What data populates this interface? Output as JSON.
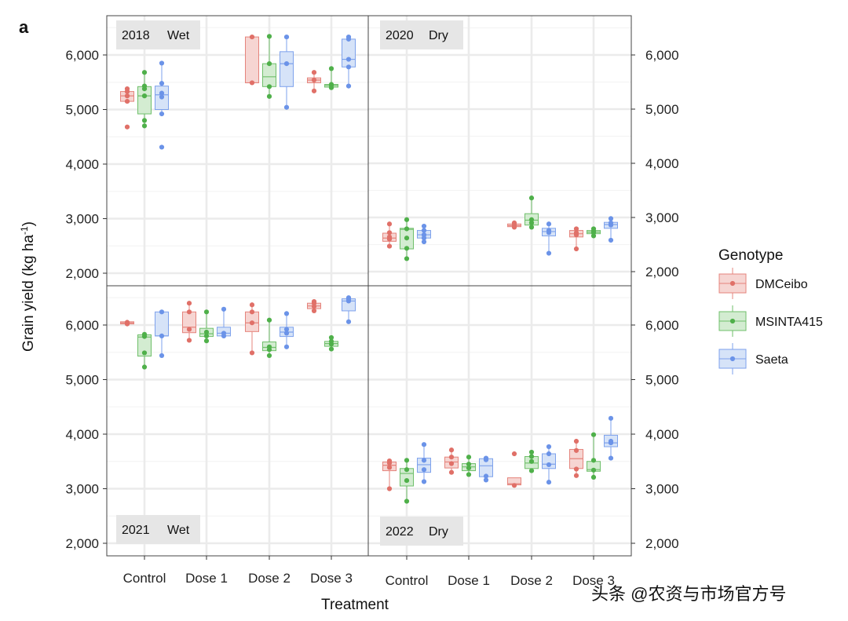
{
  "panel_letter": "a",
  "watermark": "头条 @农资与市场官方号",
  "colors": {
    "DMCeibo": {
      "fill": "#f6d5d2",
      "line": "#e5847c",
      "point": "#e07068"
    },
    "MSINTA415": {
      "fill": "#d3ecd1",
      "line": "#6fbf6a",
      "point": "#4fb04a"
    },
    "Saeta": {
      "fill": "#d6e3f8",
      "line": "#7ea2ec",
      "point": "#6b93e8"
    }
  },
  "chart_data": {
    "type": "box",
    "xlabel": "Treatment",
    "ylabel": "Grain yield (kg ha",
    "ylabel_sup": "-1",
    "ylabel_end": ")",
    "categories": [
      "Control",
      "Dose 1",
      "Dose 2",
      "Dose 3"
    ],
    "yticks": [
      2000,
      3000,
      4000,
      5000,
      6000
    ],
    "ytick_labels": [
      "2,000",
      "3,000",
      "4,000",
      "5,000",
      "6,000"
    ],
    "ylim_top_row": [
      1700,
      6700
    ],
    "ylim_bottom_row": [
      1850,
      6600
    ],
    "legend": {
      "title": "Genotype",
      "entries": [
        "DMCeibo",
        "MSINTA415",
        "Saeta"
      ],
      "position": "right"
    },
    "panels": [
      {
        "year": "2018",
        "condition": "Wet",
        "row": 0,
        "col": 0,
        "groups": [
          {
            "treatment": "Control",
            "genotype": "DMCeibo",
            "q1": 5150,
            "median": 5250,
            "q3": 5330,
            "lo": 5150,
            "hi": 5380,
            "points": [
              4680,
              5150,
              5250,
              5330,
              5380
            ]
          },
          {
            "treatment": "Control",
            "genotype": "MSINTA415",
            "q1": 4920,
            "median": 5250,
            "q3": 5420,
            "lo": 4700,
            "hi": 5680,
            "points": [
              4700,
              4800,
              5250,
              5380,
              5430,
              5680
            ]
          },
          {
            "treatment": "Control",
            "genotype": "Saeta",
            "q1": 5000,
            "median": 5270,
            "q3": 5430,
            "lo": 4920,
            "hi": 5850,
            "points": [
              4310,
              4920,
              5230,
              5300,
              5480,
              5850
            ]
          },
          {
            "treatment": "Dose 2",
            "genotype": "DMCeibo",
            "q1": 5490,
            "median": 5490,
            "q3": 6330,
            "lo": 5490,
            "hi": 6330,
            "points": [
              5490,
              6330
            ]
          },
          {
            "treatment": "Dose 2",
            "genotype": "MSINTA415",
            "q1": 5420,
            "median": 5600,
            "q3": 5840,
            "lo": 5240,
            "hi": 6340,
            "points": [
              5240,
              5420,
              5840,
              6340
            ]
          },
          {
            "treatment": "Dose 2",
            "genotype": "Saeta",
            "q1": 5420,
            "median": 5840,
            "q3": 6060,
            "lo": 5040,
            "hi": 6330,
            "points": [
              5040,
              5840,
              6330
            ]
          },
          {
            "treatment": "Dose 3",
            "genotype": "DMCeibo",
            "q1": 5490,
            "median": 5540,
            "q3": 5580,
            "lo": 5340,
            "hi": 5680,
            "points": [
              5340,
              5540,
              5680
            ]
          },
          {
            "treatment": "Dose 3",
            "genotype": "MSINTA415",
            "q1": 5410,
            "median": 5440,
            "q3": 5460,
            "lo": 5400,
            "hi": 5750,
            "points": [
              5400,
              5440,
              5460,
              5750
            ]
          },
          {
            "treatment": "Dose 3",
            "genotype": "Saeta",
            "q1": 5780,
            "median": 5920,
            "q3": 6290,
            "lo": 5430,
            "hi": 6330,
            "points": [
              5430,
              5780,
              5920,
              6290,
              6330
            ]
          }
        ]
      },
      {
        "year": "2020",
        "condition": "Dry",
        "row": 0,
        "col": 1,
        "groups": [
          {
            "treatment": "Control",
            "genotype": "DMCeibo",
            "q1": 2560,
            "median": 2620,
            "q3": 2710,
            "lo": 2470,
            "hi": 2880,
            "points": [
              2470,
              2600,
              2640,
              2720,
              2880
            ]
          },
          {
            "treatment": "Control",
            "genotype": "MSINTA415",
            "q1": 2420,
            "median": 2780,
            "q3": 2800,
            "lo": 2240,
            "hi": 2960,
            "points": [
              2240,
              2430,
              2620,
              2790,
              2960
            ]
          },
          {
            "treatment": "Control",
            "genotype": "Saeta",
            "q1": 2620,
            "median": 2680,
            "q3": 2760,
            "lo": 2550,
            "hi": 2840,
            "points": [
              2550,
              2620,
              2680,
              2760,
              2840
            ]
          },
          {
            "treatment": "Dose 2",
            "genotype": "DMCeibo",
            "q1": 2830,
            "median": 2850,
            "q3": 2880,
            "lo": 2820,
            "hi": 2900,
            "points": [
              2820,
              2850,
              2880,
              2900
            ]
          },
          {
            "treatment": "Dose 2",
            "genotype": "MSINTA415",
            "q1": 2860,
            "median": 2950,
            "q3": 3070,
            "lo": 2820,
            "hi": 3360,
            "points": [
              2820,
              2900,
              2960,
              3360
            ]
          },
          {
            "treatment": "Dose 2",
            "genotype": "Saeta",
            "q1": 2660,
            "median": 2740,
            "q3": 2800,
            "lo": 2340,
            "hi": 2880,
            "points": [
              2340,
              2720,
              2760,
              2880
            ]
          },
          {
            "treatment": "Dose 3",
            "genotype": "DMCeibo",
            "q1": 2640,
            "median": 2700,
            "q3": 2760,
            "lo": 2420,
            "hi": 2790,
            "points": [
              2420,
              2680,
              2720,
              2790
            ]
          },
          {
            "treatment": "Dose 3",
            "genotype": "MSINTA415",
            "q1": 2700,
            "median": 2730,
            "q3": 2760,
            "lo": 2660,
            "hi": 2790,
            "points": [
              2660,
              2720,
              2750,
              2790
            ]
          },
          {
            "treatment": "Dose 3",
            "genotype": "Saeta",
            "q1": 2800,
            "median": 2870,
            "q3": 2910,
            "lo": 2580,
            "hi": 2980,
            "points": [
              2580,
              2860,
              2900,
              2980
            ]
          }
        ]
      },
      {
        "year": "2021",
        "condition": "Wet",
        "row": 1,
        "col": 0,
        "groups": [
          {
            "treatment": "Control",
            "genotype": "DMCeibo",
            "q1": 6020,
            "median": 6040,
            "q3": 6060,
            "lo": 6010,
            "hi": 6070,
            "points": [
              6020,
              6050
            ]
          },
          {
            "treatment": "Control",
            "genotype": "MSINTA415",
            "q1": 5430,
            "median": 5780,
            "q3": 5820,
            "lo": 5230,
            "hi": 5830,
            "points": [
              5230,
              5490,
              5790,
              5830
            ]
          },
          {
            "treatment": "Control",
            "genotype": "Saeta",
            "q1": 5800,
            "median": 5800,
            "q3": 6240,
            "lo": 5440,
            "hi": 6240,
            "points": [
              5440,
              5800,
              6240
            ]
          },
          {
            "treatment": "Dose 1",
            "genotype": "DMCeibo",
            "q1": 5860,
            "median": 5960,
            "q3": 6240,
            "lo": 5720,
            "hi": 6400,
            "points": [
              5720,
              5920,
              6240,
              6400
            ]
          },
          {
            "treatment": "Dose 1",
            "genotype": "MSINTA415",
            "q1": 5790,
            "median": 5840,
            "q3": 5940,
            "lo": 5710,
            "hi": 6240,
            "points": [
              5710,
              5800,
              5870,
              6240
            ]
          },
          {
            "treatment": "Dose 1",
            "genotype": "Saeta",
            "q1": 5800,
            "median": 5850,
            "q3": 5960,
            "lo": 5800,
            "hi": 6290,
            "points": [
              5800,
              5850,
              6290
            ]
          },
          {
            "treatment": "Dose 2",
            "genotype": "DMCeibo",
            "q1": 5880,
            "median": 6040,
            "q3": 6240,
            "lo": 5490,
            "hi": 6370,
            "points": [
              5490,
              6040,
              6240,
              6370
            ]
          },
          {
            "treatment": "Dose 2",
            "genotype": "MSINTA415",
            "q1": 5530,
            "median": 5590,
            "q3": 5690,
            "lo": 5440,
            "hi": 6090,
            "points": [
              5440,
              5550,
              5600,
              6090
            ]
          },
          {
            "treatment": "Dose 2",
            "genotype": "Saeta",
            "q1": 5790,
            "median": 5870,
            "q3": 5960,
            "lo": 5600,
            "hi": 6210,
            "points": [
              5600,
              5850,
              5920,
              6210
            ]
          },
          {
            "treatment": "Dose 3",
            "genotype": "DMCeibo",
            "q1": 6300,
            "median": 6350,
            "q3": 6400,
            "lo": 6260,
            "hi": 6430,
            "points": [
              6260,
              6340,
              6400,
              6430
            ]
          },
          {
            "treatment": "Dose 3",
            "genotype": "MSINTA415",
            "q1": 5610,
            "median": 5660,
            "q3": 5700,
            "lo": 5560,
            "hi": 5770,
            "points": [
              5560,
              5650,
              5700,
              5770
            ]
          },
          {
            "treatment": "Dose 3",
            "genotype": "Saeta",
            "q1": 6260,
            "median": 6440,
            "q3": 6480,
            "lo": 6060,
            "hi": 6500,
            "points": [
              6060,
              6440,
              6470,
              6500
            ]
          }
        ]
      },
      {
        "year": "2022",
        "condition": "Dry",
        "row": 1,
        "col": 1,
        "groups": [
          {
            "treatment": "Control",
            "genotype": "DMCeibo",
            "q1": 3330,
            "median": 3430,
            "q3": 3490,
            "lo": 3000,
            "hi": 3510,
            "points": [
              3000,
              3390,
              3470,
              3510
            ]
          },
          {
            "treatment": "Control",
            "genotype": "MSINTA415",
            "q1": 3050,
            "median": 3280,
            "q3": 3370,
            "lo": 2770,
            "hi": 3520,
            "points": [
              2770,
              3150,
              3350,
              3520
            ]
          },
          {
            "treatment": "Control",
            "genotype": "Saeta",
            "q1": 3300,
            "median": 3440,
            "q3": 3560,
            "lo": 3130,
            "hi": 3810,
            "points": [
              3130,
              3350,
              3520,
              3810
            ]
          },
          {
            "treatment": "Dose 1",
            "genotype": "DMCeibo",
            "q1": 3380,
            "median": 3490,
            "q3": 3580,
            "lo": 3300,
            "hi": 3710,
            "points": [
              3300,
              3460,
              3580,
              3710
            ]
          },
          {
            "treatment": "Dose 1",
            "genotype": "MSINTA415",
            "q1": 3330,
            "median": 3400,
            "q3": 3460,
            "lo": 3260,
            "hi": 3580,
            "points": [
              3260,
              3380,
              3450,
              3580
            ]
          },
          {
            "treatment": "Dose 1",
            "genotype": "Saeta",
            "q1": 3220,
            "median": 3420,
            "q3": 3550,
            "lo": 3160,
            "hi": 3560,
            "points": [
              3160,
              3230,
              3530,
              3560
            ]
          },
          {
            "treatment": "Dose 2",
            "genotype": "DMCeibo",
            "q1": 3070,
            "median": 3090,
            "q3": 3200,
            "lo": 3060,
            "hi": 3200,
            "points": [
              3060,
              3640
            ]
          },
          {
            "treatment": "Dose 2",
            "genotype": "MSINTA415",
            "q1": 3370,
            "median": 3470,
            "q3": 3590,
            "lo": 3330,
            "hi": 3670,
            "points": [
              3330,
              3500,
              3590,
              3670
            ]
          },
          {
            "treatment": "Dose 2",
            "genotype": "Saeta",
            "q1": 3370,
            "median": 3450,
            "q3": 3640,
            "lo": 3120,
            "hi": 3770,
            "points": [
              3120,
              3440,
              3640,
              3770
            ]
          },
          {
            "treatment": "Dose 3",
            "genotype": "DMCeibo",
            "q1": 3370,
            "median": 3550,
            "q3": 3720,
            "lo": 3240,
            "hi": 3870,
            "points": [
              3240,
              3360,
              3700,
              3870
            ]
          },
          {
            "treatment": "Dose 3",
            "genotype": "MSINTA415",
            "q1": 3320,
            "median": 3350,
            "q3": 3500,
            "lo": 3210,
            "hi": 3990,
            "points": [
              3210,
              3340,
              3520,
              3990
            ]
          },
          {
            "treatment": "Dose 3",
            "genotype": "Saeta",
            "q1": 3770,
            "median": 3840,
            "q3": 3980,
            "lo": 3560,
            "hi": 4290,
            "points": [
              3560,
              3840,
              3870,
              4290
            ]
          }
        ]
      }
    ]
  }
}
